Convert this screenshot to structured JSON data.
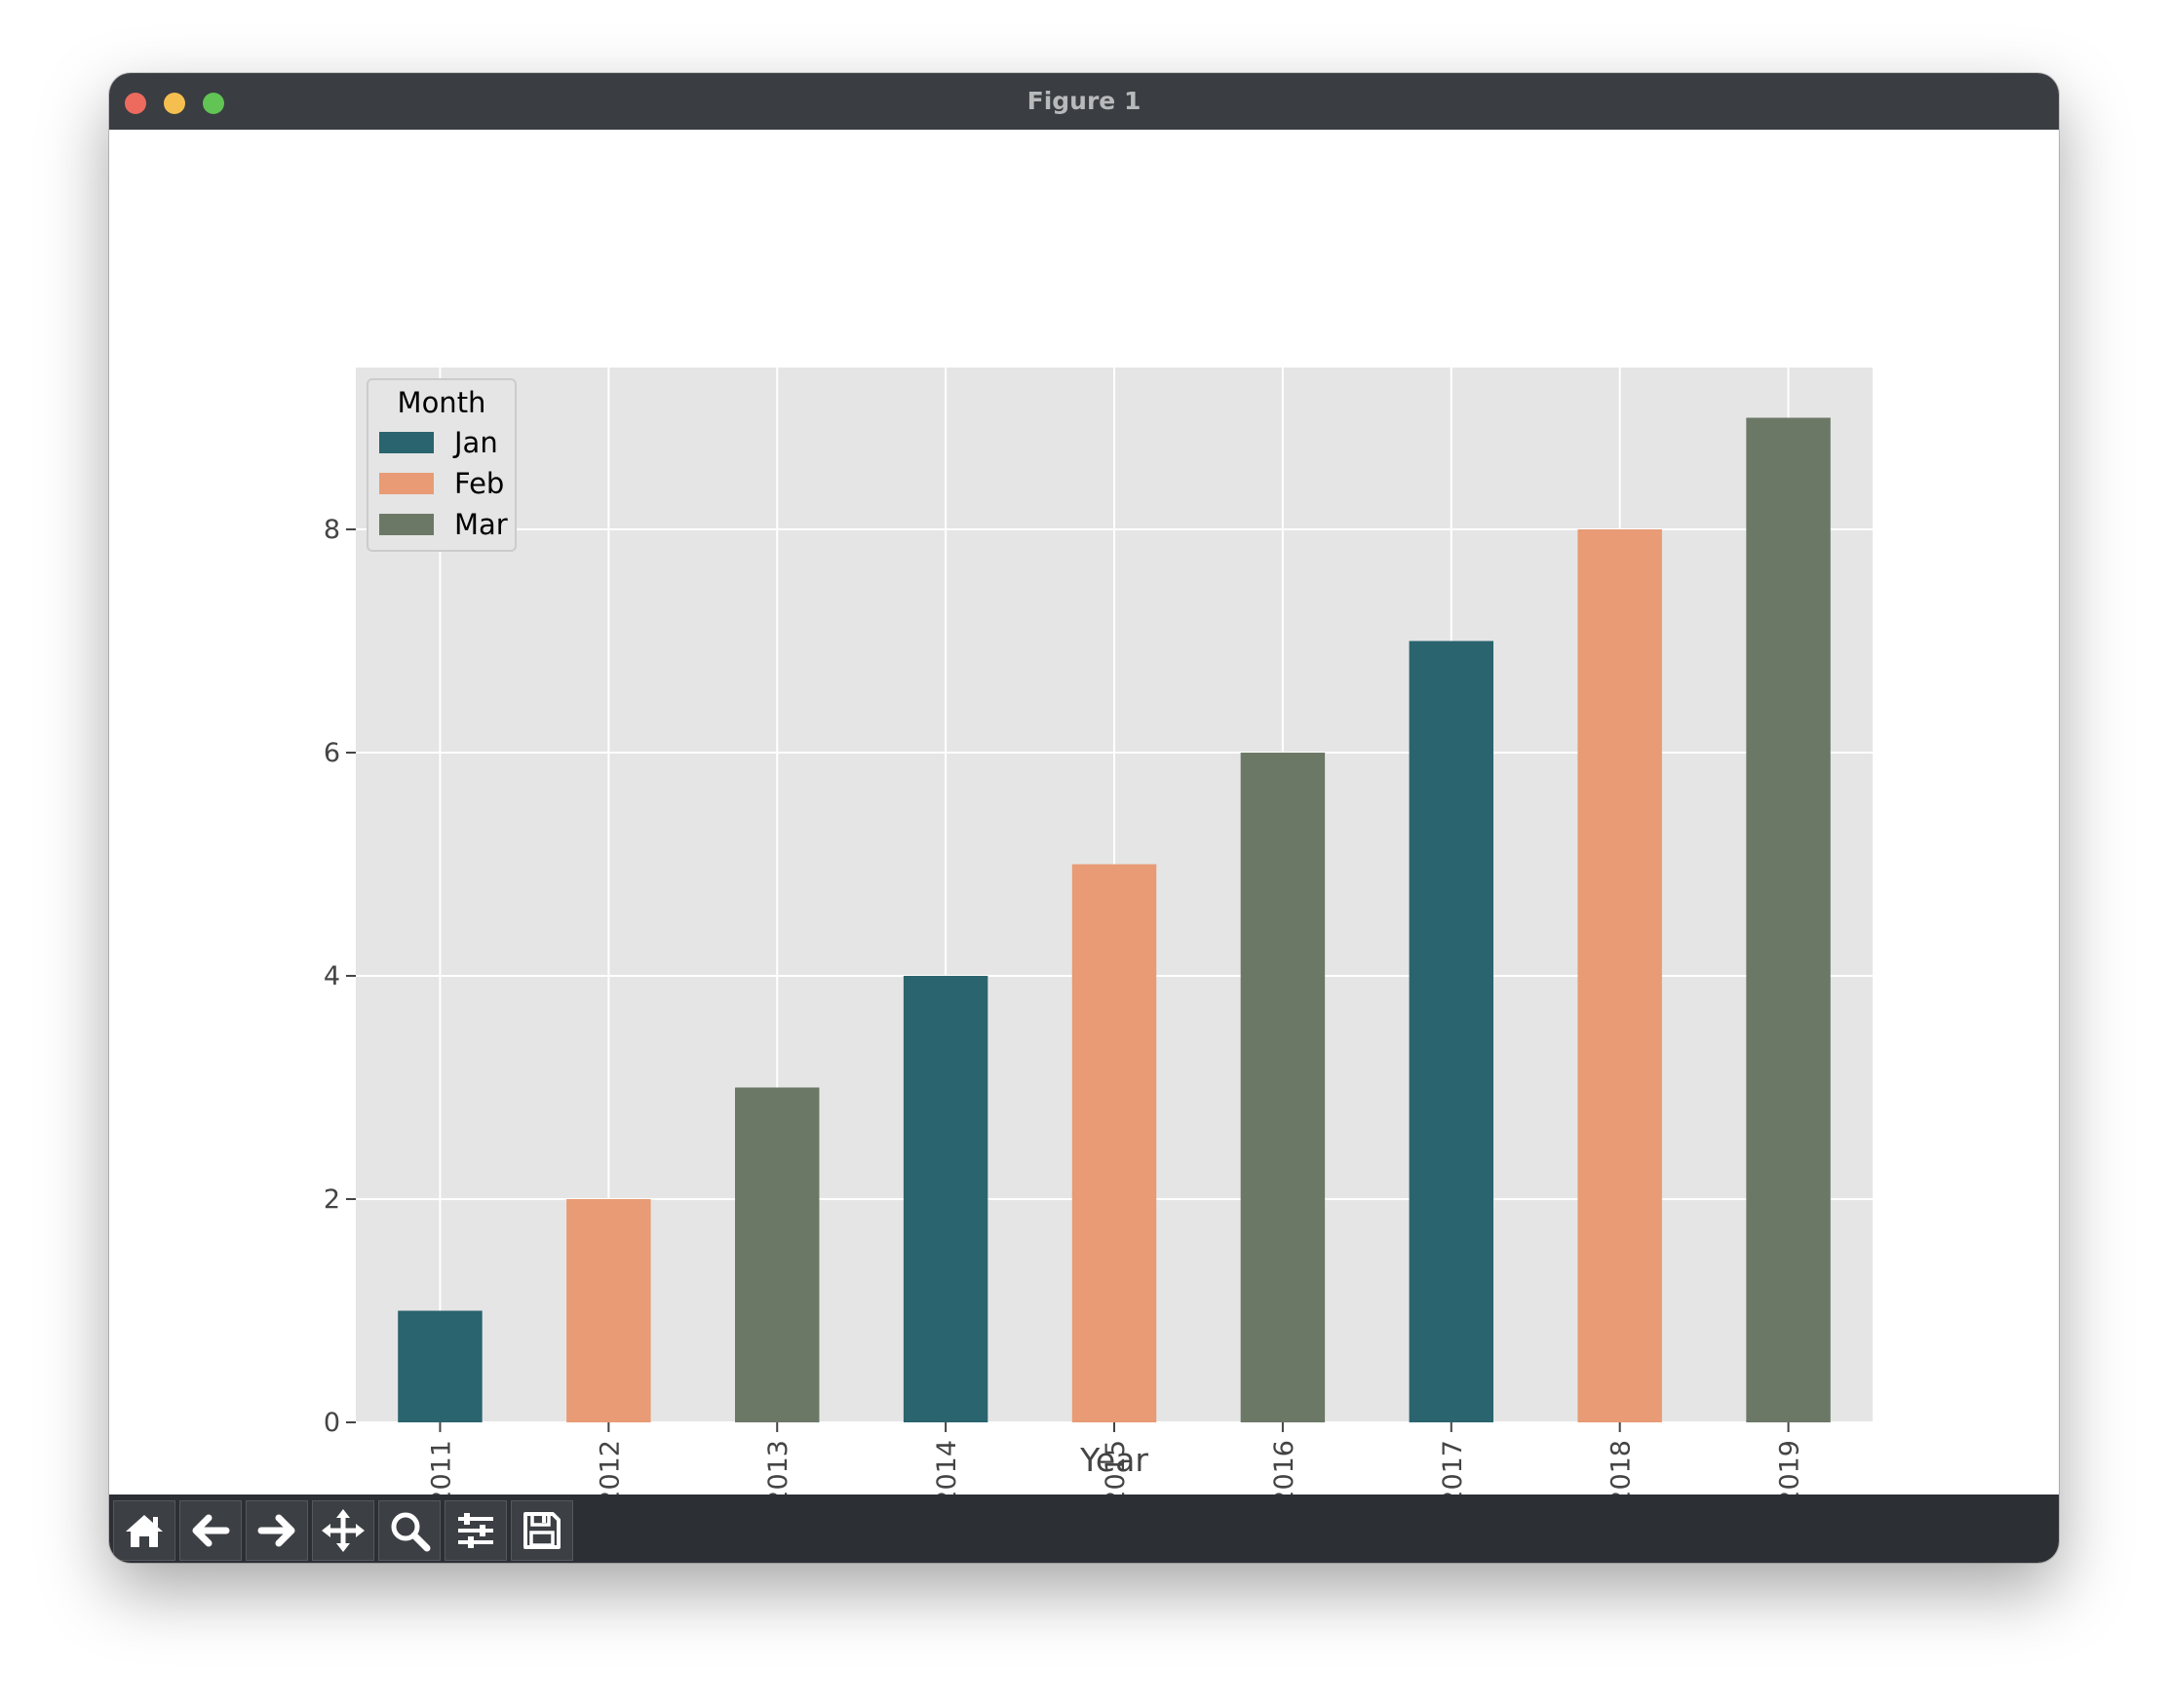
{
  "window": {
    "title": "Figure 1"
  },
  "toolbar": {
    "buttons": [
      {
        "name": "home-icon",
        "label": "home"
      },
      {
        "name": "arrow-left-icon",
        "label": "back"
      },
      {
        "name": "arrow-right-icon",
        "label": "forward"
      },
      {
        "name": "move-icon",
        "label": "pan"
      },
      {
        "name": "zoom-icon",
        "label": "zoom"
      },
      {
        "name": "sliders-icon",
        "label": "configure subplots"
      },
      {
        "name": "save-icon",
        "label": "save"
      }
    ]
  },
  "chart_data": {
    "type": "bar",
    "title": "",
    "xlabel": "Year",
    "ylabel": "",
    "categories": [
      "2011",
      "2012",
      "2013",
      "2014",
      "2015",
      "2016",
      "2017",
      "2018",
      "2019"
    ],
    "values": [
      1,
      2,
      3,
      4,
      5,
      6,
      7,
      8,
      9
    ],
    "bar_series": [
      "Jan",
      "Feb",
      "Mar",
      "Jan",
      "Feb",
      "Mar",
      "Jan",
      "Feb",
      "Mar"
    ],
    "ylim": [
      0,
      9.45
    ],
    "yticks": [
      0,
      2,
      4,
      6,
      8
    ],
    "grid": true,
    "legend": {
      "title": "Month",
      "placement": "top-left",
      "entries": [
        {
          "name": "Jan",
          "color": "#2a646e"
        },
        {
          "name": "Feb",
          "color": "#e89b74"
        },
        {
          "name": "Mar",
          "color": "#6b7866"
        }
      ]
    },
    "colors": {
      "plot_bg": "#e5e5e5",
      "grid": "#ffffff",
      "text": "#444444"
    }
  }
}
